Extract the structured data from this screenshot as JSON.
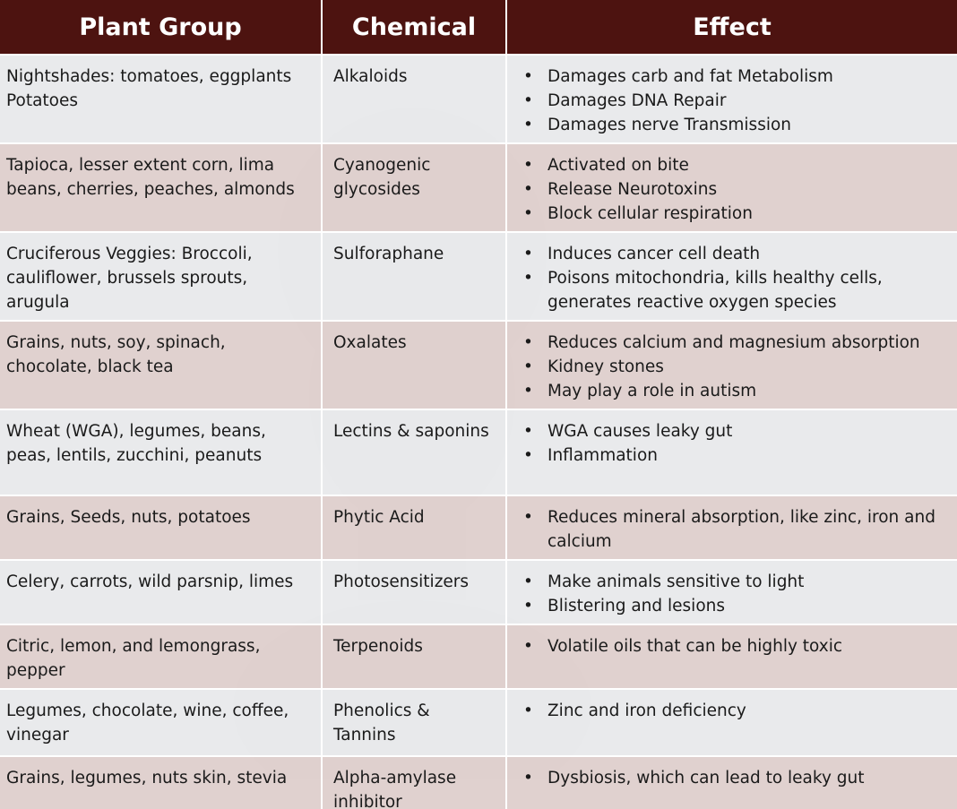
{
  "header": {
    "col_plant": "Plant Group",
    "col_chemical": "Chemical",
    "col_effect": "Effect"
  },
  "colors": {
    "header_bg": "#4d1310",
    "row_light": "#e8e9ec",
    "row_dark": "#decfcc"
  },
  "bullet_char": "•",
  "rows": [
    {
      "plant": [
        "Nightshades: tomatoes, eggplants",
        "Potatoes"
      ],
      "chemical": [
        "Alkaloids"
      ],
      "effects": [
        [
          "Damages carb and fat Metabolism"
        ],
        [
          "Damages DNA Repair"
        ],
        [
          "Damages nerve Transmission"
        ]
      ]
    },
    {
      "plant": [
        "Tapioca, lesser extent corn, lima",
        "beans, cherries, peaches, almonds"
      ],
      "chemical": [
        "Cyanogenic",
        "glycosides"
      ],
      "effects": [
        [
          "Activated on bite"
        ],
        [
          "Release Neurotoxins"
        ],
        [
          "Block cellular respiration"
        ]
      ]
    },
    {
      "plant": [
        "Cruciferous Veggies: Broccoli,",
        "cauliflower, brussels sprouts,",
        "arugula"
      ],
      "chemical": [
        "Sulforaphane"
      ],
      "effects": [
        [
          "Induces cancer cell death"
        ],
        [
          "Poisons mitochondria, kills healthy cells,",
          "generates reactive oxygen species"
        ]
      ]
    },
    {
      "plant": [
        "Grains, nuts, soy, spinach,",
        "chocolate, black tea"
      ],
      "chemical": [
        "Oxalates"
      ],
      "effects": [
        [
          "Reduces calcium and magnesium absorption"
        ],
        [
          "Kidney stones"
        ],
        [
          "May play a role in autism"
        ]
      ]
    },
    {
      "plant": [
        "Wheat (WGA), legumes, beans,",
        "peas, lentils, zucchini, peanuts"
      ],
      "chemical": [
        "Lectins & saponins"
      ],
      "effects": [
        [
          "WGA causes leaky gut"
        ],
        [
          "Inflammation"
        ]
      ]
    },
    {
      "plant": [
        "Grains, Seeds, nuts, potatoes"
      ],
      "chemical": [
        "Phytic Acid"
      ],
      "effects": [
        [
          "Reduces mineral absorption, like zinc, iron and",
          "calcium"
        ]
      ]
    },
    {
      "plant": [
        "Celery, carrots, wild parsnip, limes"
      ],
      "chemical": [
        "Photosensitizers"
      ],
      "effects": [
        [
          "Make animals sensitive to light"
        ],
        [
          "Blistering and lesions"
        ]
      ]
    },
    {
      "plant": [
        "Citric, lemon, and lemongrass,",
        "pepper"
      ],
      "chemical": [
        "Terpenoids"
      ],
      "effects": [
        [
          "Volatile oils that can be highly toxic"
        ]
      ]
    },
    {
      "plant": [
        "Legumes, chocolate, wine, coffee,",
        "vinegar"
      ],
      "chemical": [
        "Phenolics &",
        "Tannins"
      ],
      "effects": [
        [
          "Zinc and iron deficiency"
        ]
      ]
    },
    {
      "plant": [
        "Grains, legumes, nuts skin, stevia"
      ],
      "chemical": [
        "Alpha-amylase",
        "inhibitor"
      ],
      "effects": [
        [
          "Dysbiosis, which can lead to leaky gut"
        ]
      ]
    }
  ]
}
